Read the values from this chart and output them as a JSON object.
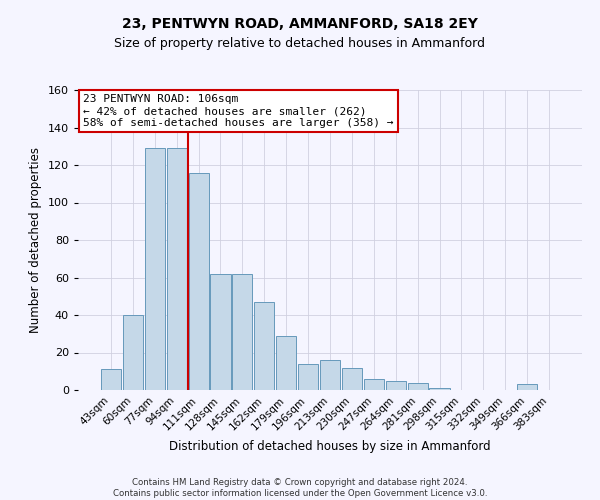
{
  "title": "23, PENTWYN ROAD, AMMANFORD, SA18 2EY",
  "subtitle": "Size of property relative to detached houses in Ammanford",
  "xlabel": "Distribution of detached houses by size in Ammanford",
  "ylabel": "Number of detached properties",
  "footer_line1": "Contains HM Land Registry data © Crown copyright and database right 2024.",
  "footer_line2": "Contains public sector information licensed under the Open Government Licence v3.0.",
  "bin_labels": [
    "43sqm",
    "60sqm",
    "77sqm",
    "94sqm",
    "111sqm",
    "128sqm",
    "145sqm",
    "162sqm",
    "179sqm",
    "196sqm",
    "213sqm",
    "230sqm",
    "247sqm",
    "264sqm",
    "281sqm",
    "298sqm",
    "315sqm",
    "332sqm",
    "349sqm",
    "366sqm",
    "383sqm"
  ],
  "bar_values": [
    11,
    40,
    129,
    129,
    116,
    62,
    62,
    47,
    29,
    14,
    16,
    12,
    6,
    5,
    4,
    1,
    0,
    0,
    0,
    3,
    0
  ],
  "bar_color": "#c5d8e8",
  "bar_edge_color": "#6699bb",
  "vline_color": "#cc0000",
  "vline_x": 3.5,
  "annotation_title": "23 PENTWYN ROAD: 106sqm",
  "annotation_line1": "← 42% of detached houses are smaller (262)",
  "annotation_line2": "58% of semi-detached houses are larger (358) →",
  "annotation_box_edge": "#cc0000",
  "ylim": [
    0,
    160
  ],
  "yticks": [
    0,
    20,
    40,
    60,
    80,
    100,
    120,
    140,
    160
  ],
  "background_color": "#f5f5ff",
  "grid_color": "#d0d0e0",
  "title_fontsize": 10,
  "subtitle_fontsize": 9
}
